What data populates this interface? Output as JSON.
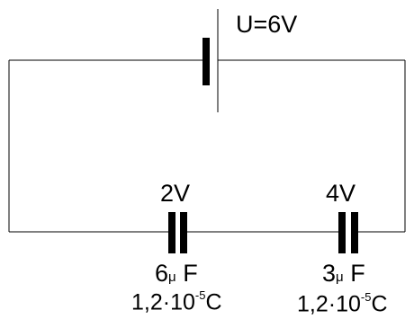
{
  "battery": {
    "label": "U=6V"
  },
  "capacitor_left": {
    "voltage": "2V",
    "cap_num": "6",
    "cap_mu": "μ",
    "cap_unit": " F",
    "charge_base": "1,2·10",
    "charge_exp": "-5",
    "charge_unit": "C"
  },
  "capacitor_right": {
    "voltage": "4V",
    "cap_num": "3",
    "cap_mu": "μ",
    "cap_unit": " F",
    "charge_base": "1,2·10",
    "charge_exp": "-5",
    "charge_unit": "C"
  },
  "colors": {
    "wire": "#000000",
    "background": "#ffffff"
  }
}
